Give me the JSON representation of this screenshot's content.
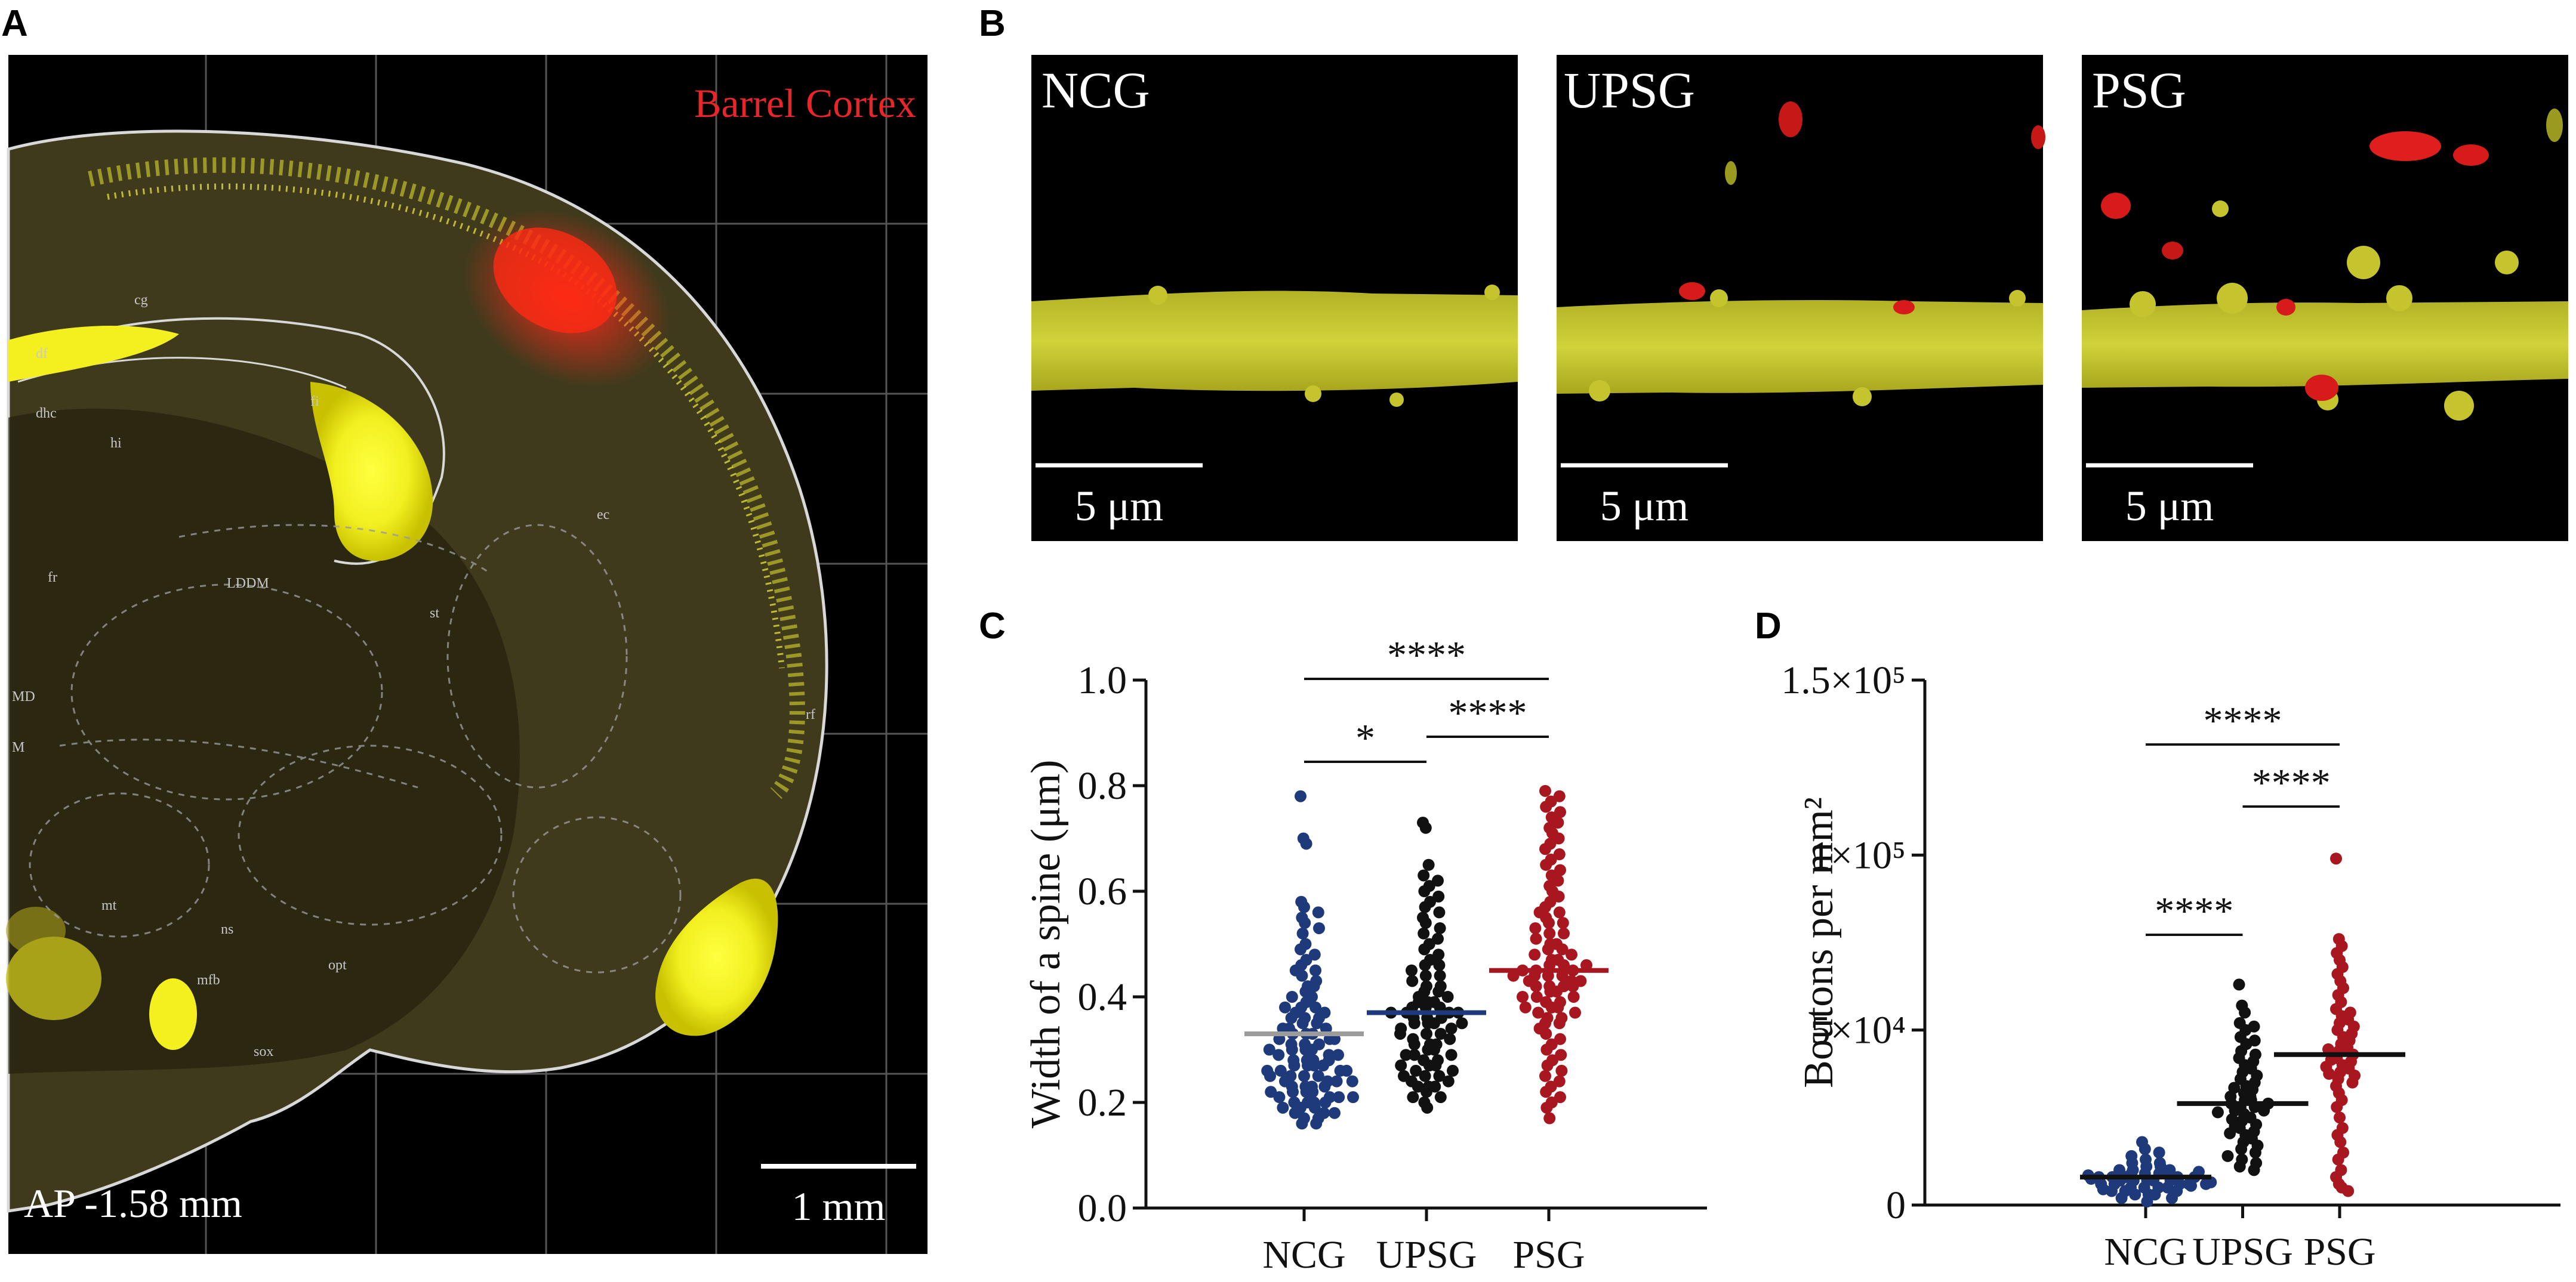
{
  "figure": {
    "panel_a": {
      "letter": "A",
      "label_region": "Barrel Cortex",
      "label_ap": "AP -1.58 mm",
      "scale_bar": "1 mm",
      "atlas_labels": [
        "cg",
        "df",
        "dhc",
        "hi",
        "fi",
        "st",
        "LDDM",
        "fr",
        "mt",
        "ns",
        "mfb",
        "opt",
        "sox",
        "rf",
        "ec",
        "MD",
        "M"
      ]
    },
    "panel_b": {
      "letter": "B",
      "images": [
        {
          "name": "NCG",
          "scale_bar": "5 μm"
        },
        {
          "name": "UPSG",
          "scale_bar": "5 μm"
        },
        {
          "name": "PSG",
          "scale_bar": "5 μm"
        }
      ]
    },
    "colors": {
      "NCG": "#1f3a7a",
      "UPSG": "#111111",
      "PSG": "#a8161f",
      "mean_NCG": "#9b9b9b",
      "mean_UPSG": "#1f3a7a",
      "mean_PSG": "#a8161f",
      "mean_D": "#111111"
    }
  },
  "chart_data": [
    {
      "panel": "C",
      "type": "scatter",
      "title": "",
      "xlabel": "",
      "ylabel": "Width of a spine (μm)",
      "categories": [
        "NCG",
        "UPSG",
        "PSG"
      ],
      "ylim": [
        0.0,
        1.0
      ],
      "yticks": [
        0.0,
        0.2,
        0.4,
        0.6,
        0.8,
        1.0
      ],
      "ytick_labels": [
        "0.0",
        "0.2",
        "0.4",
        "0.6",
        "0.8",
        "1.0"
      ],
      "means": [
        0.33,
        0.37,
        0.45
      ],
      "series": [
        {
          "name": "NCG",
          "values": [
            0.78,
            0.7,
            0.69,
            0.58,
            0.57,
            0.56,
            0.55,
            0.54,
            0.53,
            0.52,
            0.5,
            0.49,
            0.48,
            0.47,
            0.46,
            0.45,
            0.45,
            0.44,
            0.43,
            0.42,
            0.42,
            0.41,
            0.4,
            0.4,
            0.39,
            0.38,
            0.38,
            0.37,
            0.37,
            0.36,
            0.36,
            0.35,
            0.35,
            0.34,
            0.34,
            0.33,
            0.33,
            0.33,
            0.32,
            0.32,
            0.31,
            0.31,
            0.31,
            0.3,
            0.3,
            0.3,
            0.29,
            0.29,
            0.29,
            0.28,
            0.28,
            0.28,
            0.27,
            0.27,
            0.27,
            0.27,
            0.26,
            0.26,
            0.26,
            0.25,
            0.25,
            0.25,
            0.24,
            0.24,
            0.24,
            0.23,
            0.23,
            0.23,
            0.22,
            0.22,
            0.22,
            0.21,
            0.21,
            0.21,
            0.2,
            0.2,
            0.2,
            0.19,
            0.19,
            0.18,
            0.18,
            0.17,
            0.17,
            0.16,
            0.16,
            0.38,
            0.36,
            0.34,
            0.32,
            0.3,
            0.28,
            0.26,
            0.25,
            0.24,
            0.23,
            0.22,
            0.21,
            0.2,
            0.19,
            0.18
          ]
        },
        {
          "name": "UPSG",
          "values": [
            0.73,
            0.72,
            0.65,
            0.63,
            0.62,
            0.61,
            0.6,
            0.59,
            0.58,
            0.57,
            0.56,
            0.55,
            0.54,
            0.53,
            0.52,
            0.51,
            0.5,
            0.49,
            0.48,
            0.47,
            0.46,
            0.46,
            0.45,
            0.44,
            0.44,
            0.43,
            0.42,
            0.42,
            0.41,
            0.41,
            0.4,
            0.4,
            0.39,
            0.39,
            0.38,
            0.38,
            0.38,
            0.37,
            0.37,
            0.37,
            0.36,
            0.36,
            0.36,
            0.35,
            0.35,
            0.35,
            0.34,
            0.34,
            0.33,
            0.33,
            0.32,
            0.32,
            0.31,
            0.31,
            0.3,
            0.3,
            0.29,
            0.29,
            0.28,
            0.28,
            0.27,
            0.27,
            0.26,
            0.26,
            0.25,
            0.25,
            0.24,
            0.24,
            0.23,
            0.23,
            0.22,
            0.21,
            0.2,
            0.19,
            0.39,
            0.37,
            0.35,
            0.33,
            0.31,
            0.29,
            0.27,
            0.25,
            0.23,
            0.21
          ]
        },
        {
          "name": "PSG",
          "values": [
            0.79,
            0.78,
            0.77,
            0.76,
            0.75,
            0.74,
            0.73,
            0.72,
            0.71,
            0.7,
            0.69,
            0.68,
            0.67,
            0.66,
            0.65,
            0.64,
            0.63,
            0.62,
            0.61,
            0.6,
            0.59,
            0.58,
            0.57,
            0.56,
            0.56,
            0.55,
            0.54,
            0.54,
            0.53,
            0.52,
            0.52,
            0.51,
            0.5,
            0.5,
            0.49,
            0.49,
            0.48,
            0.48,
            0.47,
            0.47,
            0.46,
            0.46,
            0.45,
            0.45,
            0.45,
            0.44,
            0.44,
            0.44,
            0.43,
            0.43,
            0.43,
            0.42,
            0.42,
            0.42,
            0.41,
            0.41,
            0.4,
            0.4,
            0.39,
            0.39,
            0.38,
            0.38,
            0.37,
            0.37,
            0.36,
            0.36,
            0.35,
            0.35,
            0.34,
            0.33,
            0.32,
            0.31,
            0.3,
            0.29,
            0.28,
            0.27,
            0.26,
            0.25,
            0.24,
            0.23,
            0.22,
            0.21,
            0.2,
            0.19,
            0.17,
            0.46,
            0.44,
            0.42,
            0.4,
            0.38
          ]
        }
      ],
      "significance": [
        {
          "from": "NCG",
          "to": "PSG",
          "label": "****"
        },
        {
          "from": "NCG",
          "to": "UPSG",
          "label": "*"
        },
        {
          "from": "UPSG",
          "to": "PSG",
          "label": "****"
        }
      ]
    },
    {
      "panel": "D",
      "type": "scatter",
      "title": "",
      "xlabel": "",
      "ylabel": "Boutons per mm²",
      "categories": [
        "NCG",
        "UPSG",
        "PSG"
      ],
      "ylim": [
        0,
        150000
      ],
      "yticks": [
        0,
        50000,
        100000,
        150000
      ],
      "ytick_labels": [
        "0",
        "5×10⁴",
        "1×10⁵",
        "1.5×10⁵"
      ],
      "means": [
        8000,
        29000,
        43000
      ],
      "series": [
        {
          "name": "NCG",
          "values": [
            18000,
            16000,
            15000,
            14000,
            13000,
            12000,
            12000,
            11000,
            11000,
            10000,
            10000,
            10000,
            9000,
            9000,
            9000,
            9000,
            8000,
            8000,
            8000,
            8000,
            8000,
            7000,
            7000,
            7000,
            7000,
            7000,
            6000,
            6000,
            6000,
            6000,
            6000,
            5000,
            5000,
            5000,
            5000,
            4000,
            4000,
            4000,
            3000,
            3000,
            3000,
            2000,
            2000,
            1000,
            9500,
            8500,
            7500,
            6500,
            5500,
            4500
          ]
        },
        {
          "name": "UPSG",
          "values": [
            63000,
            57000,
            55000,
            52000,
            51000,
            50000,
            48000,
            47000,
            46000,
            44000,
            43000,
            42000,
            41000,
            40000,
            39000,
            38000,
            37000,
            36000,
            35000,
            34000,
            33000,
            32000,
            31000,
            31000,
            30000,
            30000,
            29000,
            29000,
            28000,
            28000,
            27000,
            27000,
            26000,
            25000,
            24000,
            23000,
            22000,
            21000,
            20000,
            19000,
            18000,
            17000,
            16000,
            15000,
            14000,
            13000,
            12000,
            11000,
            10000,
            33500,
            26500,
            24500,
            22500,
            20500
          ]
        },
        {
          "name": "PSG",
          "values": [
            99000,
            76000,
            74000,
            72000,
            70000,
            68000,
            66000,
            64000,
            62000,
            60000,
            58000,
            56000,
            55000,
            54000,
            53000,
            52000,
            51000,
            50000,
            49000,
            48000,
            47000,
            46000,
            45000,
            44000,
            43000,
            42000,
            41000,
            40000,
            39000,
            38000,
            37000,
            36000,
            35000,
            34000,
            32000,
            30000,
            28000,
            25000,
            22000,
            20000,
            18000,
            15000,
            13000,
            10000,
            8000,
            6000,
            5000,
            4000,
            44500,
            41500,
            39500,
            37500
          ]
        }
      ],
      "significance": [
        {
          "from": "NCG",
          "to": "PSG",
          "label": "****"
        },
        {
          "from": "UPSG",
          "to": "PSG",
          "label": "****"
        },
        {
          "from": "NCG",
          "to": "UPSG",
          "label": "****"
        }
      ]
    }
  ]
}
